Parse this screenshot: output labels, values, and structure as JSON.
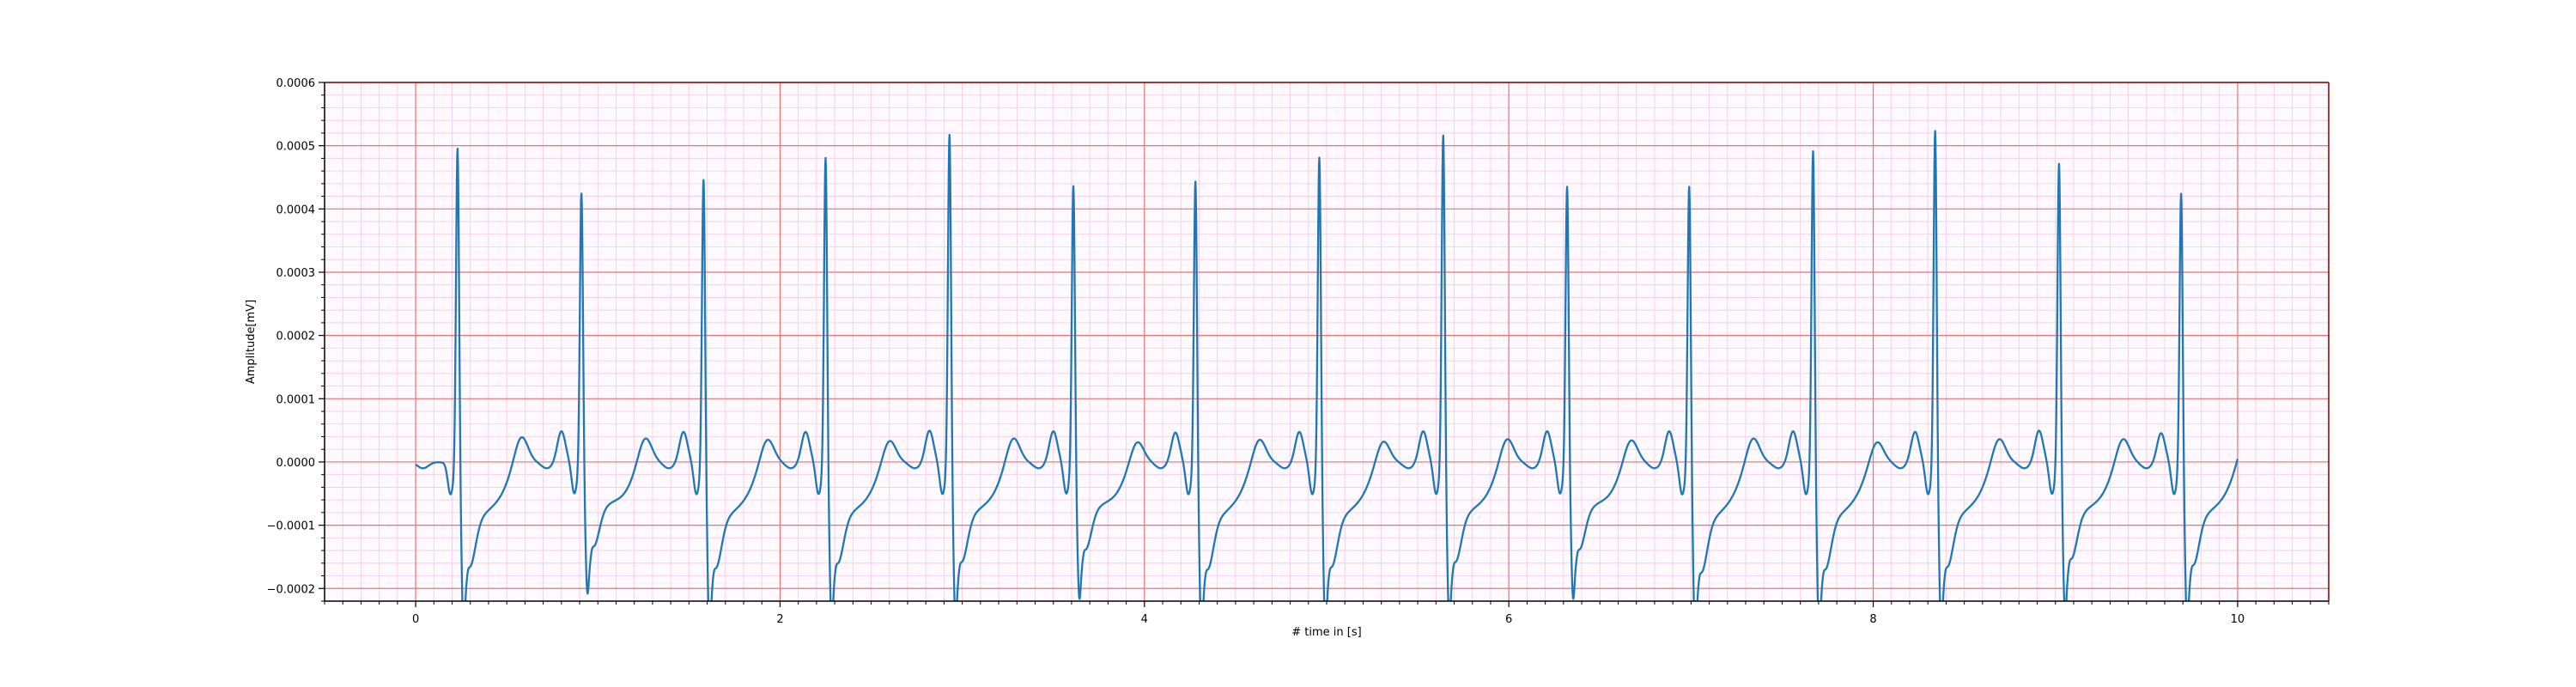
{
  "chart_data": {
    "type": "line",
    "title": "",
    "xlabel": "# time in [s]",
    "ylabel": "Amplitude[mV]",
    "xlim": [
      -0.5,
      10.5
    ],
    "ylim": [
      -0.00022,
      0.0006
    ],
    "x_ticks": [
      0,
      2,
      4,
      6,
      8,
      10
    ],
    "x_tick_labels": [
      "0",
      "2",
      "4",
      "6",
      "8",
      "10"
    ],
    "y_ticks": [
      -0.0002,
      -0.0001,
      0.0,
      0.0001,
      0.0002,
      0.0003,
      0.0004,
      0.0005,
      0.0006
    ],
    "y_tick_labels": [
      "−0.0002",
      "−0.0001",
      "0.0000",
      "0.0001",
      "0.0002",
      "0.0003",
      "0.0004",
      "0.0005",
      "0.0006"
    ],
    "grid": "ecg-paper (major red, minor pink)",
    "colors": {
      "line": "#1f77b4",
      "major_grid": "#f07070",
      "minor_grid": "#f5c8e4",
      "plot_background": "#fdf9fd",
      "frame_top_right": "#8b0000"
    },
    "beats": {
      "r_times": [
        0.23,
        0.91,
        1.58,
        2.25,
        2.93,
        3.61,
        4.28,
        4.96,
        5.64,
        6.32,
        6.99,
        7.67,
        8.34,
        9.02,
        9.69
      ],
      "r_peaks": [
        0.000537,
        0.000458,
        0.000488,
        0.000521,
        0.000557,
        0.000471,
        0.000486,
        0.000523,
        0.000556,
        0.00047,
        0.000479,
        0.000534,
        0.000565,
        0.00051,
        0.000465
      ],
      "s_troughs": [
        -0.000168,
        -0.000135,
        -0.00017,
        -0.000162,
        -0.00016,
        -0.00014,
        -0.000172,
        -0.000168,
        -0.00016,
        -0.00014,
        -0.000177,
        -0.000172,
        -0.000168,
        -0.000155,
        -0.000165
      ],
      "t_peaks": [
        4.2e-05,
        4e-05,
        3.8e-05,
        3.6e-05,
        4e-05,
        3.4e-05,
        3.8e-05,
        3.5e-05,
        3.9e-05,
        3.7e-05,
        4e-05,
        3.4e-05,
        3.9e-05,
        3.9e-05,
        3.6e-05
      ],
      "p_peaks": [
        0.0,
        4.9e-05,
        4.8e-05,
        4.8e-05,
        5e-05,
        4.9e-05,
        4.7e-05,
        4.8e-05,
        4.9e-05,
        4.9e-05,
        4.9e-05,
        4.9e-05,
        4.8e-05,
        5e-05,
        4.6e-05
      ]
    }
  }
}
